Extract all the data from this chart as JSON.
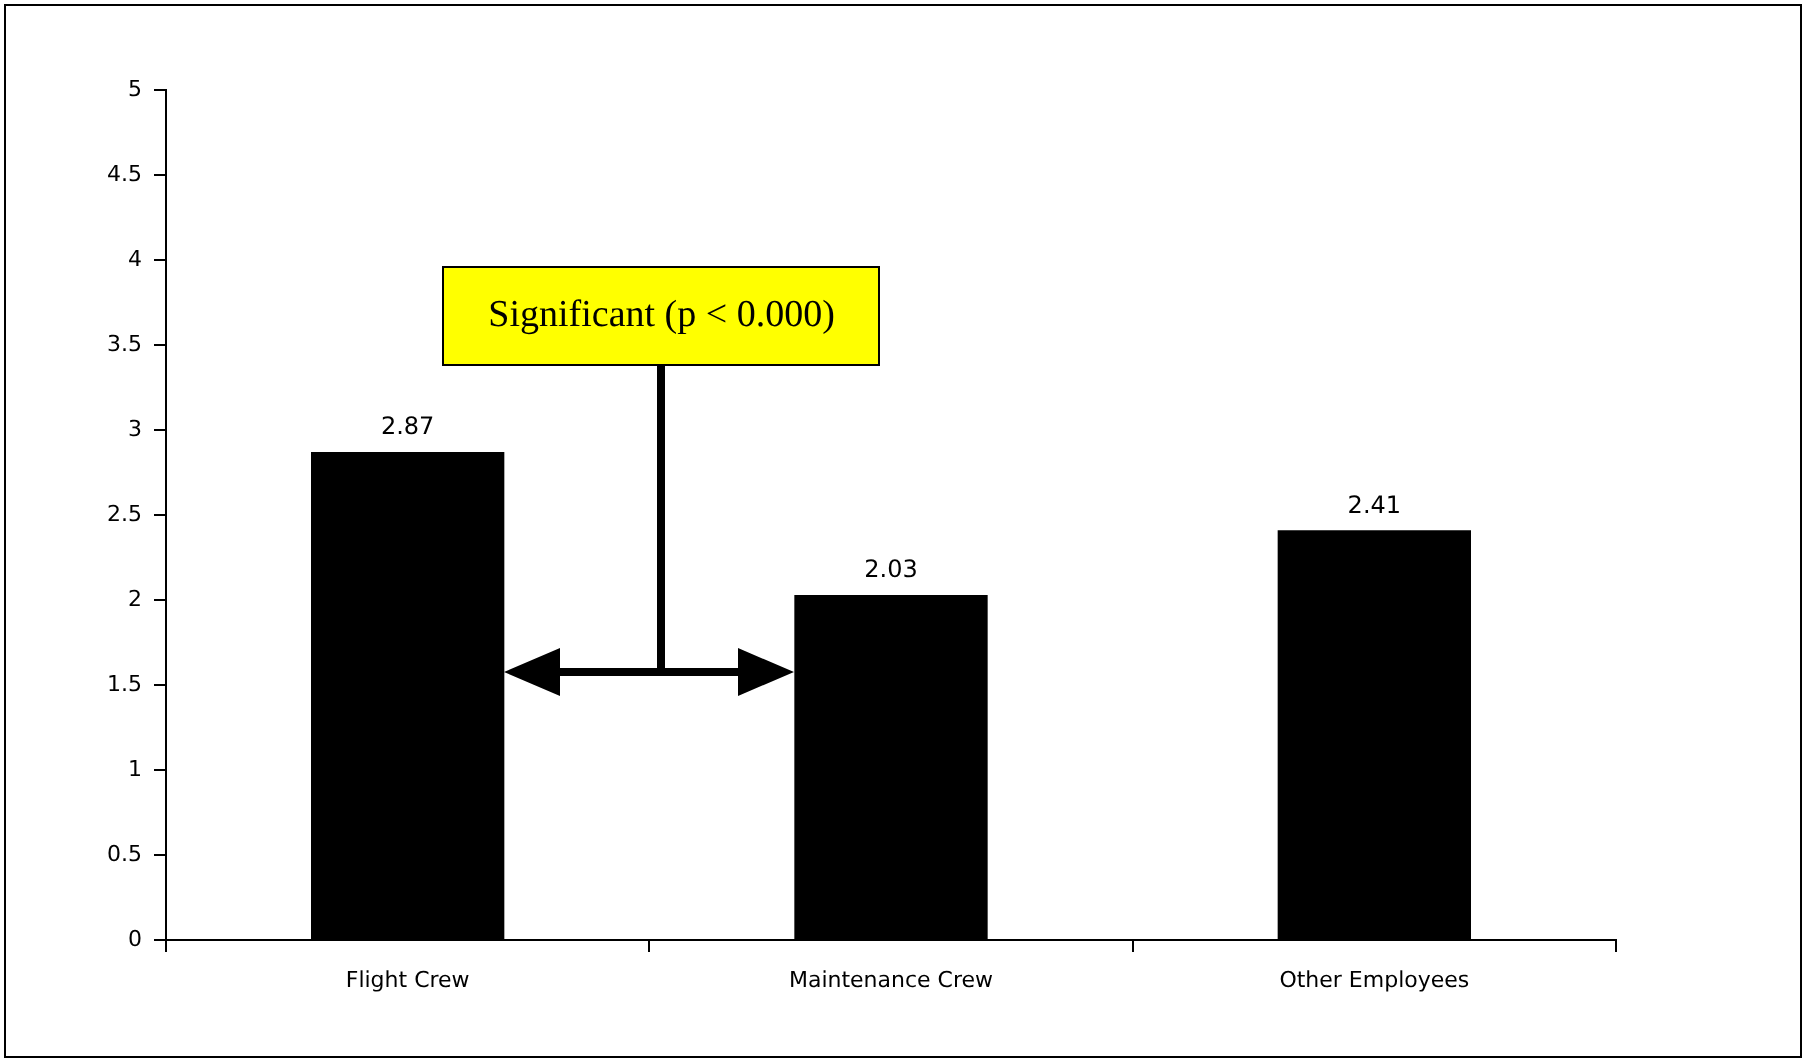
{
  "chart_data": {
    "type": "bar",
    "categories": [
      "Flight Crew",
      "Maintenance Crew",
      "Other Employees"
    ],
    "values": [
      2.87,
      2.03,
      2.41
    ],
    "color": "#000000",
    "data_labels": true,
    "ylim": [
      0,
      5
    ],
    "yticks": [
      0,
      0.5,
      1,
      1.5,
      2,
      2.5,
      3,
      3.5,
      4,
      4.5,
      5
    ],
    "grid": false,
    "legend": false,
    "annotations": [
      "Significant (p < 0.000)"
    ]
  }
}
